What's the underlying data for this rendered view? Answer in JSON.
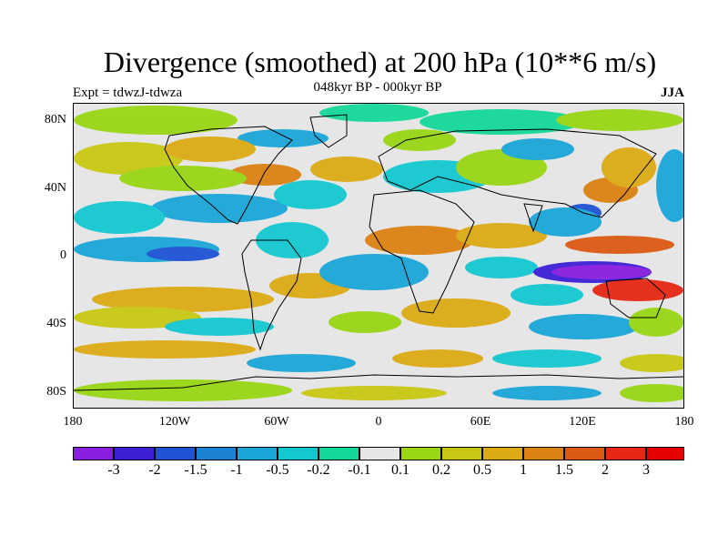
{
  "title": "Divergence (smoothed) at 200 hPa (10**6 m/s)",
  "subtitle": "048kyr BP - 000kyr BP",
  "experiment": "Expt = tdwzJ-tdwza",
  "season": "JJA",
  "lat_labels": [
    "80N",
    "40N",
    "0",
    "40S",
    "80S"
  ],
  "lon_labels": [
    "180",
    "120W",
    "60W",
    "0",
    "60E",
    "120E",
    "180"
  ],
  "colorbar": {
    "labels": [
      "-3",
      "-2",
      "-1.5",
      "-1",
      "-0.5",
      "-0.2",
      "-0.1",
      "0.1",
      "0.2",
      "0.5",
      "1",
      "1.5",
      "2",
      "3"
    ],
    "colors": [
      "#8a1ee0",
      "#3e1fd6",
      "#1e53d6",
      "#1c82d4",
      "#1aa6d8",
      "#14c8d0",
      "#14d89a",
      "#e6e6e6",
      "#9ad614",
      "#c8c814",
      "#dcaa14",
      "#dc8214",
      "#dc5a14",
      "#e62814",
      "#e60000"
    ]
  },
  "palette": {
    "background": "#e6e6e6",
    "coastline": "#000000"
  }
}
